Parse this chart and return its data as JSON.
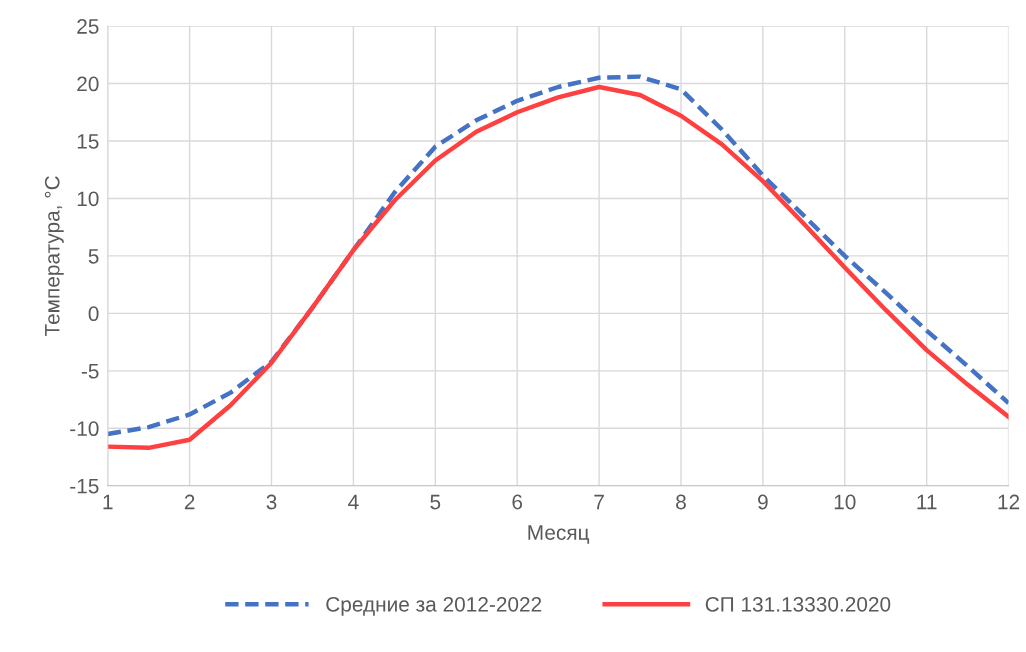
{
  "chart_data": {
    "type": "line",
    "xlabel": "Месяц",
    "ylabel": "Температура, °C",
    "x": [
      1,
      1.5,
      2,
      2.5,
      3,
      3.5,
      4,
      4.5,
      5,
      5.5,
      6,
      6.5,
      7,
      7.5,
      8,
      8.5,
      9,
      9.5,
      10,
      10.5,
      11,
      11.5,
      12
    ],
    "series": [
      {
        "name": "Средние за 2012-2022",
        "color": "#4472c4",
        "line_style": "dashed",
        "values": [
          -10.5,
          -9.9,
          -8.8,
          -6.9,
          -4.2,
          0.5,
          5.5,
          10.5,
          14.5,
          16.8,
          18.5,
          19.7,
          20.5,
          20.6,
          19.5,
          16,
          12,
          8.5,
          5,
          1.8,
          -1.5,
          -4.6,
          -7.8
        ]
      },
      {
        "name": "СП 131.13330.2020",
        "color": "#ff4040",
        "line_style": "solid",
        "values": [
          -11.6,
          -11.7,
          -11,
          -8,
          -4.3,
          0.5,
          5.5,
          9.8,
          13.3,
          15.8,
          17.5,
          18.8,
          19.7,
          19,
          17.2,
          14.7,
          11.5,
          7.8,
          4,
          0.3,
          -3.2,
          -6.2,
          -9
        ]
      }
    ],
    "xlim": [
      1,
      12
    ],
    "xticks": [
      1,
      2,
      3,
      4,
      5,
      6,
      7,
      8,
      9,
      10,
      11,
      12
    ],
    "ylim": [
      -15,
      25
    ],
    "yticks": [
      -15,
      -10,
      -5,
      0,
      5,
      10,
      15,
      20,
      25
    ],
    "grid": true,
    "legend": "bottom",
    "marker": "none"
  }
}
